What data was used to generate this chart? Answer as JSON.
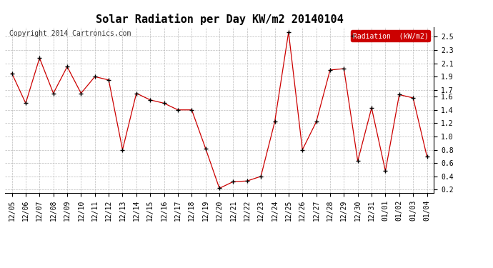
{
  "title": "Solar Radiation per Day KW/m2 20140104",
  "copyright_text": "Copyright 2014 Cartronics.com",
  "legend_label": "Radiation  (kW/m2)",
  "dates": [
    "12/05",
    "12/06",
    "12/07",
    "12/08",
    "12/09",
    "12/10",
    "12/11",
    "12/12",
    "12/13",
    "12/14",
    "12/15",
    "12/16",
    "12/17",
    "12/18",
    "12/19",
    "12/20",
    "12/21",
    "12/22",
    "12/23",
    "12/24",
    "12/25",
    "12/26",
    "12/27",
    "12/28",
    "12/29",
    "12/30",
    "12/31",
    "01/01",
    "01/02",
    "01/03",
    "01/04"
  ],
  "values": [
    1.95,
    1.5,
    2.18,
    1.65,
    2.05,
    1.65,
    1.9,
    1.85,
    0.8,
    1.65,
    1.55,
    1.5,
    1.4,
    1.4,
    0.82,
    0.22,
    0.32,
    0.33,
    0.4,
    1.22,
    2.57,
    0.8,
    1.22,
    2.0,
    2.02,
    0.63,
    1.43,
    0.48,
    1.63,
    1.58,
    0.7
  ],
  "line_color": "#cc0000",
  "marker_color": "#000000",
  "bg_color": "#ffffff",
  "grid_color": "#aaaaaa",
  "legend_bg": "#cc0000",
  "legend_fg": "#ffffff",
  "title_fontsize": 11,
  "tick_fontsize": 7,
  "copyright_fontsize": 7,
  "legend_fontsize": 7,
  "ylim": [
    0.15,
    2.65
  ],
  "yticks": [
    0.2,
    0.4,
    0.6,
    0.8,
    1.0,
    1.2,
    1.4,
    1.6,
    1.7,
    1.9,
    2.1,
    2.3,
    2.5
  ]
}
